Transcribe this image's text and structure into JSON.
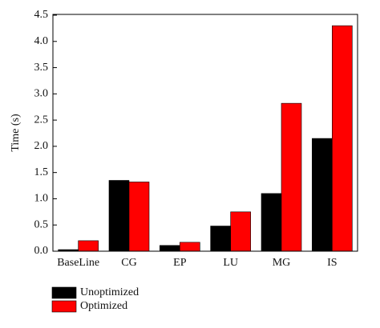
{
  "chart_data": {
    "type": "bar",
    "y_label": "Time (s)",
    "categories": [
      "BaseLine",
      "CG",
      "EP",
      "LU",
      "MG",
      "IS"
    ],
    "series": [
      {
        "name": "Unoptimized",
        "color": "#000000",
        "values": [
          0.03,
          1.35,
          0.11,
          0.48,
          1.1,
          2.15
        ]
      },
      {
        "name": "Optimized",
        "color": "#ff0000",
        "values": [
          0.2,
          1.32,
          0.17,
          0.75,
          2.82,
          4.3
        ]
      }
    ],
    "ylim": [
      0,
      4.5
    ],
    "yticks": [
      {
        "value": 0,
        "label": "0.0"
      },
      0.5,
      {
        "value": 1,
        "label": "1.0"
      },
      1.5,
      {
        "value": 2,
        "label": "2.0"
      },
      2.5,
      {
        "value": 3,
        "label": "3.0"
      },
      3.5,
      {
        "value": 4,
        "label": "4.0"
      },
      4.5
    ],
    "legend": "bottom-left"
  }
}
